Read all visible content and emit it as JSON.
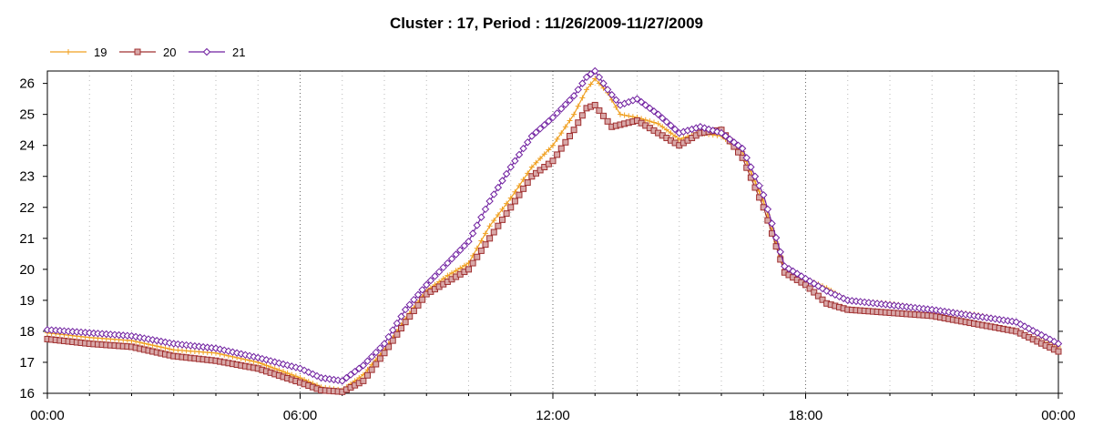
{
  "chart_data": {
    "type": "line",
    "title": "Cluster : 17, Period : 11/26/2009-11/27/2009",
    "xlabel": "",
    "ylabel": "",
    "x_range_hours": [
      0,
      24
    ],
    "ylim": [
      16,
      26.4
    ],
    "x_tick_labels": [
      "00:00",
      "06:00",
      "12:00",
      "18:00",
      "00:00"
    ],
    "y_ticks": [
      16,
      17,
      18,
      19,
      20,
      21,
      22,
      23,
      24,
      25,
      26
    ],
    "grid": "vertical dotted",
    "legend_position": "top-left",
    "series": [
      {
        "name": "19",
        "color": "#f0a020",
        "marker": "plus",
        "points": [
          [
            0,
            17.95
          ],
          [
            1,
            17.8
          ],
          [
            2,
            17.7
          ],
          [
            3,
            17.4
          ],
          [
            4,
            17.3
          ],
          [
            5,
            17.0
          ],
          [
            6,
            16.5
          ],
          [
            6.5,
            16.2
          ],
          [
            7,
            16.1
          ],
          [
            7.5,
            16.6
          ],
          [
            8,
            17.4
          ],
          [
            8.5,
            18.4
          ],
          [
            9,
            19.3
          ],
          [
            9.5,
            19.8
          ],
          [
            10,
            20.2
          ],
          [
            10.5,
            21.4
          ],
          [
            11,
            22.3
          ],
          [
            11.5,
            23.3
          ],
          [
            12,
            24.0
          ],
          [
            12.5,
            25.0
          ],
          [
            12.8,
            25.8
          ],
          [
            13,
            26.15
          ],
          [
            13.3,
            25.7
          ],
          [
            13.6,
            25.0
          ],
          [
            14,
            24.9
          ],
          [
            14.5,
            24.7
          ],
          [
            15,
            24.2
          ],
          [
            15.5,
            24.4
          ],
          [
            16,
            24.3
          ],
          [
            16.5,
            23.8
          ],
          [
            17,
            22.2
          ],
          [
            17.5,
            20.0
          ],
          [
            18,
            19.7
          ],
          [
            18.5,
            19.4
          ],
          [
            19,
            19.0
          ],
          [
            20,
            18.9
          ],
          [
            21,
            18.7
          ],
          [
            22,
            18.55
          ],
          [
            23,
            18.3
          ],
          [
            24,
            17.5
          ]
        ]
      },
      {
        "name": "20",
        "color": "#a03030",
        "marker": "square",
        "points": [
          [
            0,
            17.75
          ],
          [
            1,
            17.6
          ],
          [
            2,
            17.5
          ],
          [
            3,
            17.2
          ],
          [
            4,
            17.05
          ],
          [
            5,
            16.8
          ],
          [
            6,
            16.35
          ],
          [
            6.5,
            16.1
          ],
          [
            7,
            16.05
          ],
          [
            7.5,
            16.4
          ],
          [
            8,
            17.3
          ],
          [
            8.5,
            18.3
          ],
          [
            9,
            19.2
          ],
          [
            9.5,
            19.6
          ],
          [
            10,
            20.0
          ],
          [
            10.5,
            21.0
          ],
          [
            11,
            22.0
          ],
          [
            11.5,
            23.0
          ],
          [
            12,
            23.5
          ],
          [
            12.5,
            24.5
          ],
          [
            12.8,
            25.2
          ],
          [
            13,
            25.3
          ],
          [
            13.4,
            24.6
          ],
          [
            14,
            24.8
          ],
          [
            14.5,
            24.4
          ],
          [
            15,
            24.0
          ],
          [
            15.5,
            24.4
          ],
          [
            16,
            24.5
          ],
          [
            16.5,
            23.6
          ],
          [
            17,
            22.0
          ],
          [
            17.5,
            19.9
          ],
          [
            18,
            19.5
          ],
          [
            18.5,
            18.9
          ],
          [
            19,
            18.7
          ],
          [
            20,
            18.6
          ],
          [
            21,
            18.5
          ],
          [
            22,
            18.25
          ],
          [
            23,
            18.0
          ],
          [
            24,
            17.35
          ]
        ]
      },
      {
        "name": "21",
        "color": "#7020a0",
        "marker": "diamond",
        "points": [
          [
            0,
            18.05
          ],
          [
            1,
            17.95
          ],
          [
            2,
            17.85
          ],
          [
            3,
            17.6
          ],
          [
            4,
            17.45
          ],
          [
            5,
            17.15
          ],
          [
            6,
            16.8
          ],
          [
            6.5,
            16.5
          ],
          [
            7,
            16.4
          ],
          [
            7.5,
            16.9
          ],
          [
            8,
            17.6
          ],
          [
            8.5,
            18.7
          ],
          [
            9,
            19.5
          ],
          [
            9.5,
            20.2
          ],
          [
            10,
            20.9
          ],
          [
            10.5,
            22.2
          ],
          [
            11,
            23.3
          ],
          [
            11.5,
            24.3
          ],
          [
            12,
            24.9
          ],
          [
            12.5,
            25.6
          ],
          [
            12.8,
            26.2
          ],
          [
            13,
            26.4
          ],
          [
            13.3,
            25.8
          ],
          [
            13.6,
            25.3
          ],
          [
            14,
            25.5
          ],
          [
            14.5,
            25.0
          ],
          [
            15,
            24.4
          ],
          [
            15.5,
            24.6
          ],
          [
            16,
            24.4
          ],
          [
            16.5,
            23.9
          ],
          [
            17,
            22.4
          ],
          [
            17.5,
            20.1
          ],
          [
            18,
            19.7
          ],
          [
            18.5,
            19.3
          ],
          [
            19,
            19.0
          ],
          [
            20,
            18.85
          ],
          [
            21,
            18.7
          ],
          [
            22,
            18.5
          ],
          [
            23,
            18.3
          ],
          [
            24,
            17.6
          ]
        ]
      }
    ]
  }
}
